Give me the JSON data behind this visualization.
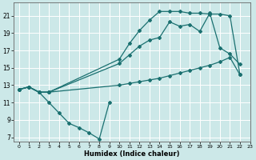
{
  "xlabel": "Humidex (Indice chaleur)",
  "bg_color": "#cce8e8",
  "grid_color": "#ffffff",
  "line_color": "#1a7070",
  "xlim": [
    -0.5,
    23
  ],
  "ylim": [
    6.5,
    22.5
  ],
  "xticks": [
    0,
    1,
    2,
    3,
    4,
    5,
    6,
    7,
    8,
    9,
    10,
    11,
    12,
    13,
    14,
    15,
    16,
    17,
    18,
    19,
    20,
    21,
    22,
    23
  ],
  "yticks": [
    7,
    9,
    11,
    13,
    15,
    17,
    19,
    21
  ],
  "curve1_x": [
    0,
    1,
    2,
    3,
    4,
    5,
    6,
    7,
    8,
    9
  ],
  "curve1_y": [
    12.5,
    12.8,
    12.2,
    11.0,
    9.8,
    8.6,
    8.1,
    7.5,
    6.8,
    11.0
  ],
  "curve2_x": [
    0,
    1,
    2,
    3,
    10,
    11,
    12,
    13,
    14,
    15,
    16,
    17,
    18,
    19,
    20,
    21,
    22
  ],
  "curve2_y": [
    12.5,
    12.8,
    12.2,
    12.2,
    13.0,
    13.2,
    13.4,
    13.6,
    13.8,
    14.1,
    14.4,
    14.7,
    15.0,
    15.3,
    15.7,
    16.2,
    14.2
  ],
  "curve3_x": [
    0,
    1,
    2,
    3,
    10,
    11,
    12,
    13,
    14,
    15,
    16,
    17,
    18,
    19,
    20,
    21,
    22
  ],
  "curve3_y": [
    12.5,
    12.8,
    12.2,
    12.2,
    15.5,
    16.5,
    17.5,
    18.2,
    18.5,
    20.3,
    19.8,
    20.0,
    19.2,
    21.3,
    17.3,
    16.6,
    15.4
  ],
  "curve4_x": [
    0,
    1,
    2,
    3,
    10,
    11,
    12,
    13,
    14,
    15,
    16,
    17,
    18,
    19,
    20,
    21,
    22
  ],
  "curve4_y": [
    12.5,
    12.8,
    12.2,
    12.2,
    16.0,
    17.8,
    19.3,
    20.5,
    21.5,
    21.5,
    21.5,
    21.3,
    21.3,
    21.2,
    21.2,
    21.0,
    14.2
  ]
}
